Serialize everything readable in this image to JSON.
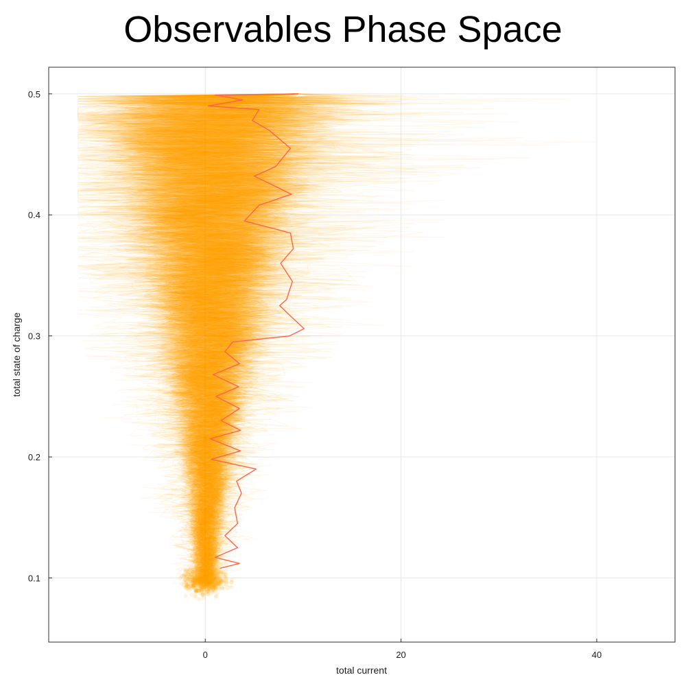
{
  "chart_data": {
    "type": "line",
    "title": "Observables Phase Space",
    "xlabel": "total current",
    "ylabel": "total state of charge",
    "xlim": [
      -16,
      48
    ],
    "ylim": [
      0.047,
      0.522
    ],
    "x_ticks": [
      0,
      20,
      40
    ],
    "y_ticks": [
      0.1,
      0.2,
      0.3,
      0.4,
      0.5
    ],
    "x_tick_labels": [
      "0",
      "20",
      "40"
    ],
    "y_tick_labels": [
      "0.1",
      "0.2",
      "0.3",
      "0.4",
      "0.5"
    ],
    "grid": true,
    "legend": "none",
    "series": [
      {
        "name": "ensemble trajectories",
        "description_count": 300,
        "color": "#FFA500",
        "opacity": 0.08,
        "start": [
          9.5,
          0.5
        ],
        "end": [
          0,
          0.095
        ]
      },
      {
        "name": "highlighted trajectory",
        "color": "#FF6347",
        "points": [
          [
            9.5,
            0.5
          ],
          [
            1.0,
            0.499
          ],
          [
            3.8,
            0.495
          ],
          [
            0.3,
            0.49
          ],
          [
            5.5,
            0.487
          ],
          [
            4.8,
            0.478
          ],
          [
            6.5,
            0.47
          ],
          [
            8.7,
            0.455
          ],
          [
            7.2,
            0.44
          ],
          [
            5.0,
            0.432
          ],
          [
            6.8,
            0.425
          ],
          [
            8.8,
            0.417
          ],
          [
            5.5,
            0.408
          ],
          [
            4.0,
            0.395
          ],
          [
            8.7,
            0.385
          ],
          [
            9.0,
            0.372
          ],
          [
            7.7,
            0.36
          ],
          [
            8.9,
            0.345
          ],
          [
            8.3,
            0.33
          ],
          [
            7.6,
            0.325
          ],
          [
            8.9,
            0.315
          ],
          [
            10.1,
            0.306
          ],
          [
            8.6,
            0.3
          ],
          [
            2.8,
            0.295
          ],
          [
            2.0,
            0.287
          ],
          [
            3.5,
            0.277
          ],
          [
            0.8,
            0.268
          ],
          [
            3.4,
            0.258
          ],
          [
            1.1,
            0.25
          ],
          [
            3.5,
            0.24
          ],
          [
            1.6,
            0.23
          ],
          [
            3.6,
            0.222
          ],
          [
            0.5,
            0.215
          ],
          [
            3.6,
            0.205
          ],
          [
            0.6,
            0.198
          ],
          [
            5.2,
            0.19
          ],
          [
            3.2,
            0.18
          ],
          [
            3.7,
            0.17
          ],
          [
            3.0,
            0.158
          ],
          [
            3.3,
            0.145
          ],
          [
            2.0,
            0.135
          ],
          [
            3.3,
            0.125
          ],
          [
            1.0,
            0.117
          ],
          [
            3.5,
            0.112
          ],
          [
            1.5,
            0.108
          ]
        ]
      }
    ]
  }
}
